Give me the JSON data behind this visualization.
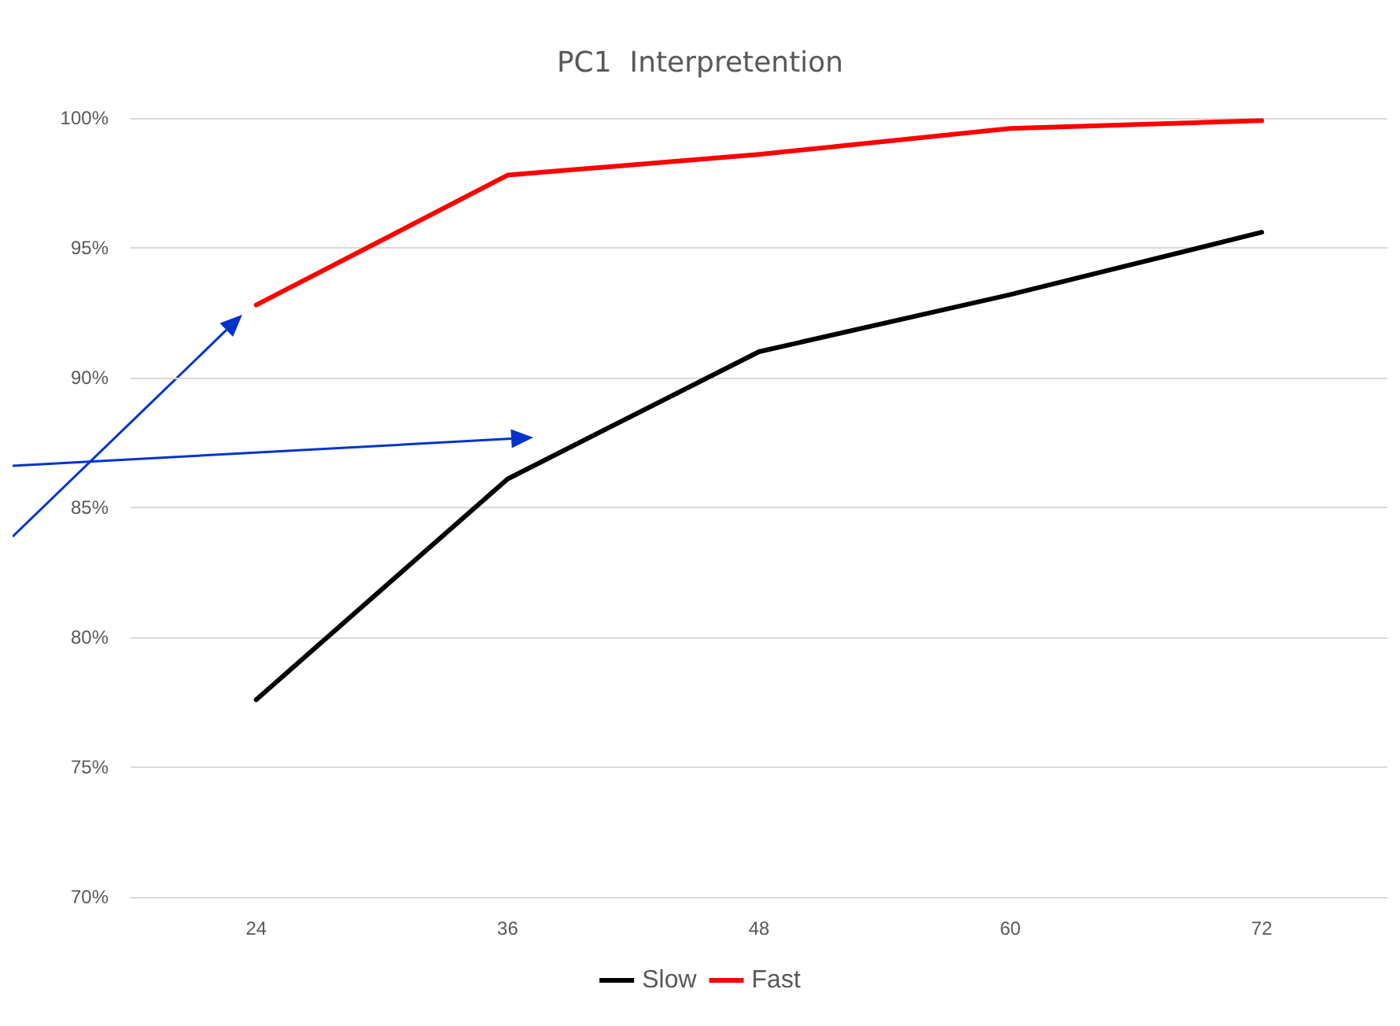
{
  "chart_data": {
    "type": "line",
    "title": "PC1  Interpretention",
    "categories": [
      "24",
      "36",
      "48",
      "60",
      "72"
    ],
    "series": [
      {
        "name": "Slow",
        "color": "#000000",
        "values": [
          77.6,
          86.1,
          91.0,
          93.2,
          95.6
        ]
      },
      {
        "name": "Fast",
        "color": "#ff0000",
        "values": [
          92.8,
          97.8,
          98.6,
          99.6,
          99.9
        ]
      }
    ],
    "ylim": [
      70,
      100
    ],
    "yticks": [
      {
        "value": 70,
        "label": "70%"
      },
      {
        "value": 75,
        "label": "75%"
      },
      {
        "value": 80,
        "label": "80%"
      },
      {
        "value": 85,
        "label": "85%"
      },
      {
        "value": 90,
        "label": "90%"
      },
      {
        "value": 95,
        "label": "95%"
      },
      {
        "value": 100,
        "label": "100%"
      }
    ],
    "grid": "y",
    "legend": "bottom",
    "marker": "none",
    "line_style": "solid"
  }
}
